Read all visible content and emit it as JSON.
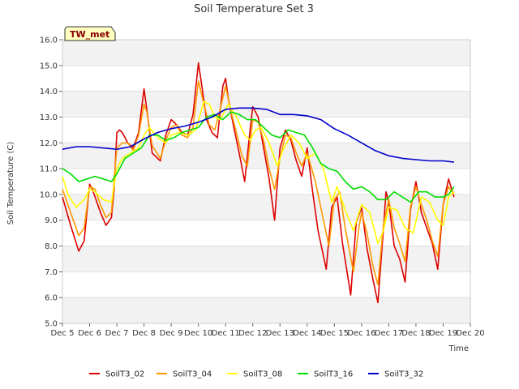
{
  "chart_data": {
    "type": "line",
    "title": "Soil Temperature Set 3",
    "xlabel": "Time",
    "ylabel": "Soil Temperature (C)",
    "station_label": "TW_met",
    "xlim": [
      5,
      20
    ],
    "ylim": [
      5.0,
      16.0
    ],
    "x_tick_values": [
      5,
      6,
      7,
      8,
      9,
      10,
      11,
      12,
      13,
      14,
      15,
      16,
      17,
      18,
      19,
      20
    ],
    "x_tick_labels": [
      "Dec 5",
      "Dec 6",
      "Dec 7",
      "Dec 8",
      "Dec 9",
      "Dec 10",
      "Dec 11",
      "Dec 12",
      "Dec 13",
      "Dec 14",
      "Dec 15",
      "Dec 16",
      "Dec 17",
      "Dec 18",
      "Dec 19",
      "Dec 20"
    ],
    "y_tick_values": [
      5,
      6,
      7,
      8,
      9,
      10,
      11,
      12,
      13,
      14,
      15,
      16
    ],
    "y_tick_labels": [
      "5.0",
      "6.0",
      "7.0",
      "8.0",
      "9.0",
      "10.0",
      "11.0",
      "12.0",
      "13.0",
      "14.0",
      "15.0",
      "16.0"
    ],
    "grid": "horizontal bands",
    "legend_position": "bottom",
    "series": [
      {
        "name": "SoilT3_02",
        "color": "#dd0000",
        "x": [
          5.0,
          5.3,
          5.6,
          5.8,
          6.0,
          6.1,
          6.4,
          6.6,
          6.8,
          6.9,
          7.0,
          7.1,
          7.2,
          7.4,
          7.6,
          7.8,
          8.0,
          8.1,
          8.3,
          8.6,
          8.8,
          9.0,
          9.2,
          9.4,
          9.6,
          9.8,
          10.0,
          10.1,
          10.3,
          10.5,
          10.7,
          10.9,
          11.0,
          11.1,
          11.3,
          11.5,
          11.7,
          11.9,
          12.0,
          12.2,
          12.4,
          12.6,
          12.8,
          13.0,
          13.2,
          13.4,
          13.6,
          13.8,
          14.0,
          14.2,
          14.4,
          14.7,
          14.9,
          15.1,
          15.3,
          15.6,
          15.8,
          16.0,
          16.2,
          16.4,
          16.6,
          16.8,
          16.9,
          17.0,
          17.2,
          17.4,
          17.6,
          17.8,
          18.0,
          18.2,
          18.4,
          18.6,
          18.8,
          19.0,
          19.2,
          19.4
        ],
        "y": [
          9.9,
          8.8,
          7.8,
          8.2,
          10.4,
          10.2,
          9.3,
          8.8,
          9.1,
          10.2,
          12.4,
          12.5,
          12.4,
          12.0,
          11.8,
          12.4,
          14.1,
          13.3,
          11.6,
          11.3,
          12.3,
          12.9,
          12.7,
          12.4,
          12.3,
          13.1,
          15.1,
          14.4,
          12.9,
          12.4,
          12.2,
          14.2,
          14.5,
          13.7,
          12.6,
          11.6,
          10.5,
          12.5,
          13.4,
          13.0,
          11.8,
          10.6,
          9.0,
          11.8,
          12.5,
          12.1,
          11.3,
          10.7,
          11.8,
          10.1,
          8.6,
          7.1,
          9.5,
          9.9,
          8.1,
          6.1,
          8.9,
          9.5,
          7.9,
          6.8,
          5.8,
          8.6,
          10.1,
          9.7,
          8.0,
          7.5,
          6.6,
          9.4,
          10.5,
          9.3,
          8.7,
          8.1,
          7.1,
          9.6,
          10.6,
          9.9
        ]
      },
      {
        "name": "SoilT3_04",
        "color": "#ff9900",
        "x": [
          5.0,
          5.3,
          5.6,
          5.8,
          6.0,
          6.2,
          6.4,
          6.6,
          6.8,
          7.0,
          7.2,
          7.4,
          7.6,
          7.8,
          8.0,
          8.1,
          8.3,
          8.6,
          8.8,
          9.0,
          9.2,
          9.4,
          9.6,
          9.8,
          10.0,
          10.2,
          10.4,
          10.6,
          10.8,
          11.0,
          11.2,
          11.4,
          11.6,
          11.8,
          12.0,
          12.2,
          12.4,
          12.6,
          12.8,
          13.0,
          13.2,
          13.4,
          13.6,
          13.8,
          14.0,
          14.3,
          14.6,
          14.8,
          15.0,
          15.2,
          15.4,
          15.7,
          15.9,
          16.0,
          16.2,
          16.4,
          16.6,
          16.8,
          17.0,
          17.2,
          17.4,
          17.6,
          17.8,
          18.0,
          18.2,
          18.4,
          18.6,
          18.8,
          19.0,
          19.2,
          19.4
        ],
        "y": [
          10.2,
          9.3,
          8.4,
          8.7,
          10.3,
          10.2,
          9.6,
          9.1,
          9.3,
          11.8,
          12.0,
          12.0,
          11.7,
          12.3,
          13.5,
          13.2,
          11.9,
          11.4,
          12.1,
          12.6,
          12.7,
          12.3,
          12.2,
          12.6,
          14.4,
          13.5,
          12.7,
          12.5,
          13.3,
          14.2,
          13.2,
          12.4,
          11.5,
          11.1,
          12.9,
          12.8,
          12.1,
          11.0,
          10.2,
          11.4,
          12.3,
          12.2,
          11.6,
          11.1,
          11.6,
          10.5,
          9.0,
          8.0,
          9.8,
          10.1,
          8.7,
          7.0,
          8.7,
          9.3,
          8.5,
          7.3,
          6.5,
          8.8,
          9.8,
          8.7,
          8.1,
          7.4,
          9.5,
          10.3,
          9.6,
          9.0,
          8.2,
          7.6,
          9.6,
          10.3,
          10.0
        ]
      },
      {
        "name": "SoilT3_08",
        "color": "#ffff00",
        "x": [
          5.0,
          5.2,
          5.5,
          5.8,
          6.0,
          6.2,
          6.5,
          6.8,
          7.0,
          7.2,
          7.5,
          7.8,
          8.0,
          8.2,
          8.5,
          8.8,
          9.0,
          9.3,
          9.6,
          9.9,
          10.2,
          10.4,
          10.6,
          10.8,
          11.1,
          11.4,
          11.7,
          11.9,
          12.1,
          12.3,
          12.6,
          12.9,
          13.1,
          13.4,
          13.7,
          14.0,
          14.3,
          14.6,
          14.9,
          15.1,
          15.4,
          15.7,
          16.0,
          16.3,
          16.6,
          16.8,
          17.0,
          17.3,
          17.6,
          17.9,
          18.2,
          18.5,
          18.8,
          19.0,
          19.2,
          19.4
        ],
        "y": [
          10.7,
          10.0,
          9.5,
          9.8,
          10.2,
          10.1,
          9.8,
          9.7,
          11.0,
          11.4,
          11.6,
          11.8,
          12.3,
          12.6,
          12.2,
          12.0,
          12.3,
          12.4,
          12.3,
          12.5,
          13.6,
          13.5,
          13.0,
          12.9,
          13.5,
          13.0,
          12.3,
          12.1,
          12.5,
          12.6,
          12.0,
          11.1,
          11.7,
          12.3,
          12.0,
          11.4,
          11.6,
          11.0,
          9.7,
          10.3,
          9.4,
          8.6,
          9.6,
          9.3,
          8.1,
          8.6,
          9.5,
          9.4,
          8.7,
          8.5,
          9.9,
          9.7,
          9.0,
          8.8,
          9.9,
          10.1
        ]
      },
      {
        "name": "SoilT3_16",
        "color": "#00dd00",
        "x": [
          5.0,
          5.3,
          5.6,
          5.9,
          6.2,
          6.5,
          6.8,
          7.0,
          7.3,
          7.6,
          7.9,
          8.2,
          8.5,
          8.8,
          9.1,
          9.4,
          9.7,
          10.0,
          10.3,
          10.6,
          10.9,
          11.2,
          11.5,
          11.8,
          12.1,
          12.4,
          12.7,
          13.0,
          13.3,
          13.6,
          13.9,
          14.2,
          14.5,
          14.8,
          15.1,
          15.4,
          15.7,
          16.0,
          16.3,
          16.6,
          16.9,
          17.2,
          17.5,
          17.8,
          18.1,
          18.4,
          18.7,
          19.0,
          19.2,
          19.4
        ],
        "y": [
          11.0,
          10.8,
          10.5,
          10.6,
          10.7,
          10.6,
          10.5,
          10.8,
          11.4,
          11.6,
          11.8,
          12.3,
          12.3,
          12.1,
          12.2,
          12.4,
          12.5,
          12.6,
          13.0,
          13.1,
          12.9,
          13.2,
          13.1,
          12.9,
          12.9,
          12.6,
          12.3,
          12.2,
          12.5,
          12.4,
          12.3,
          11.8,
          11.2,
          11.0,
          10.9,
          10.5,
          10.2,
          10.3,
          10.1,
          9.8,
          9.8,
          10.1,
          9.9,
          9.7,
          10.1,
          10.1,
          9.9,
          9.9,
          10.0,
          10.3
        ]
      },
      {
        "name": "SoilT3_32",
        "color": "#0000cc",
        "x": [
          5.0,
          5.5,
          6.0,
          6.5,
          7.0,
          7.5,
          8.0,
          8.5,
          9.0,
          9.5,
          10.0,
          10.5,
          11.0,
          11.5,
          12.0,
          12.5,
          13.0,
          13.5,
          14.0,
          14.5,
          15.0,
          15.5,
          16.0,
          16.5,
          17.0,
          17.5,
          18.0,
          18.5,
          19.0,
          19.4
        ],
        "y": [
          11.75,
          11.85,
          11.85,
          11.8,
          11.75,
          11.85,
          12.15,
          12.4,
          12.55,
          12.65,
          12.8,
          13.0,
          13.3,
          13.35,
          13.35,
          13.3,
          13.1,
          13.1,
          13.05,
          12.9,
          12.55,
          12.3,
          12.0,
          11.7,
          11.5,
          11.4,
          11.35,
          11.3,
          11.3,
          11.25
        ]
      }
    ]
  }
}
